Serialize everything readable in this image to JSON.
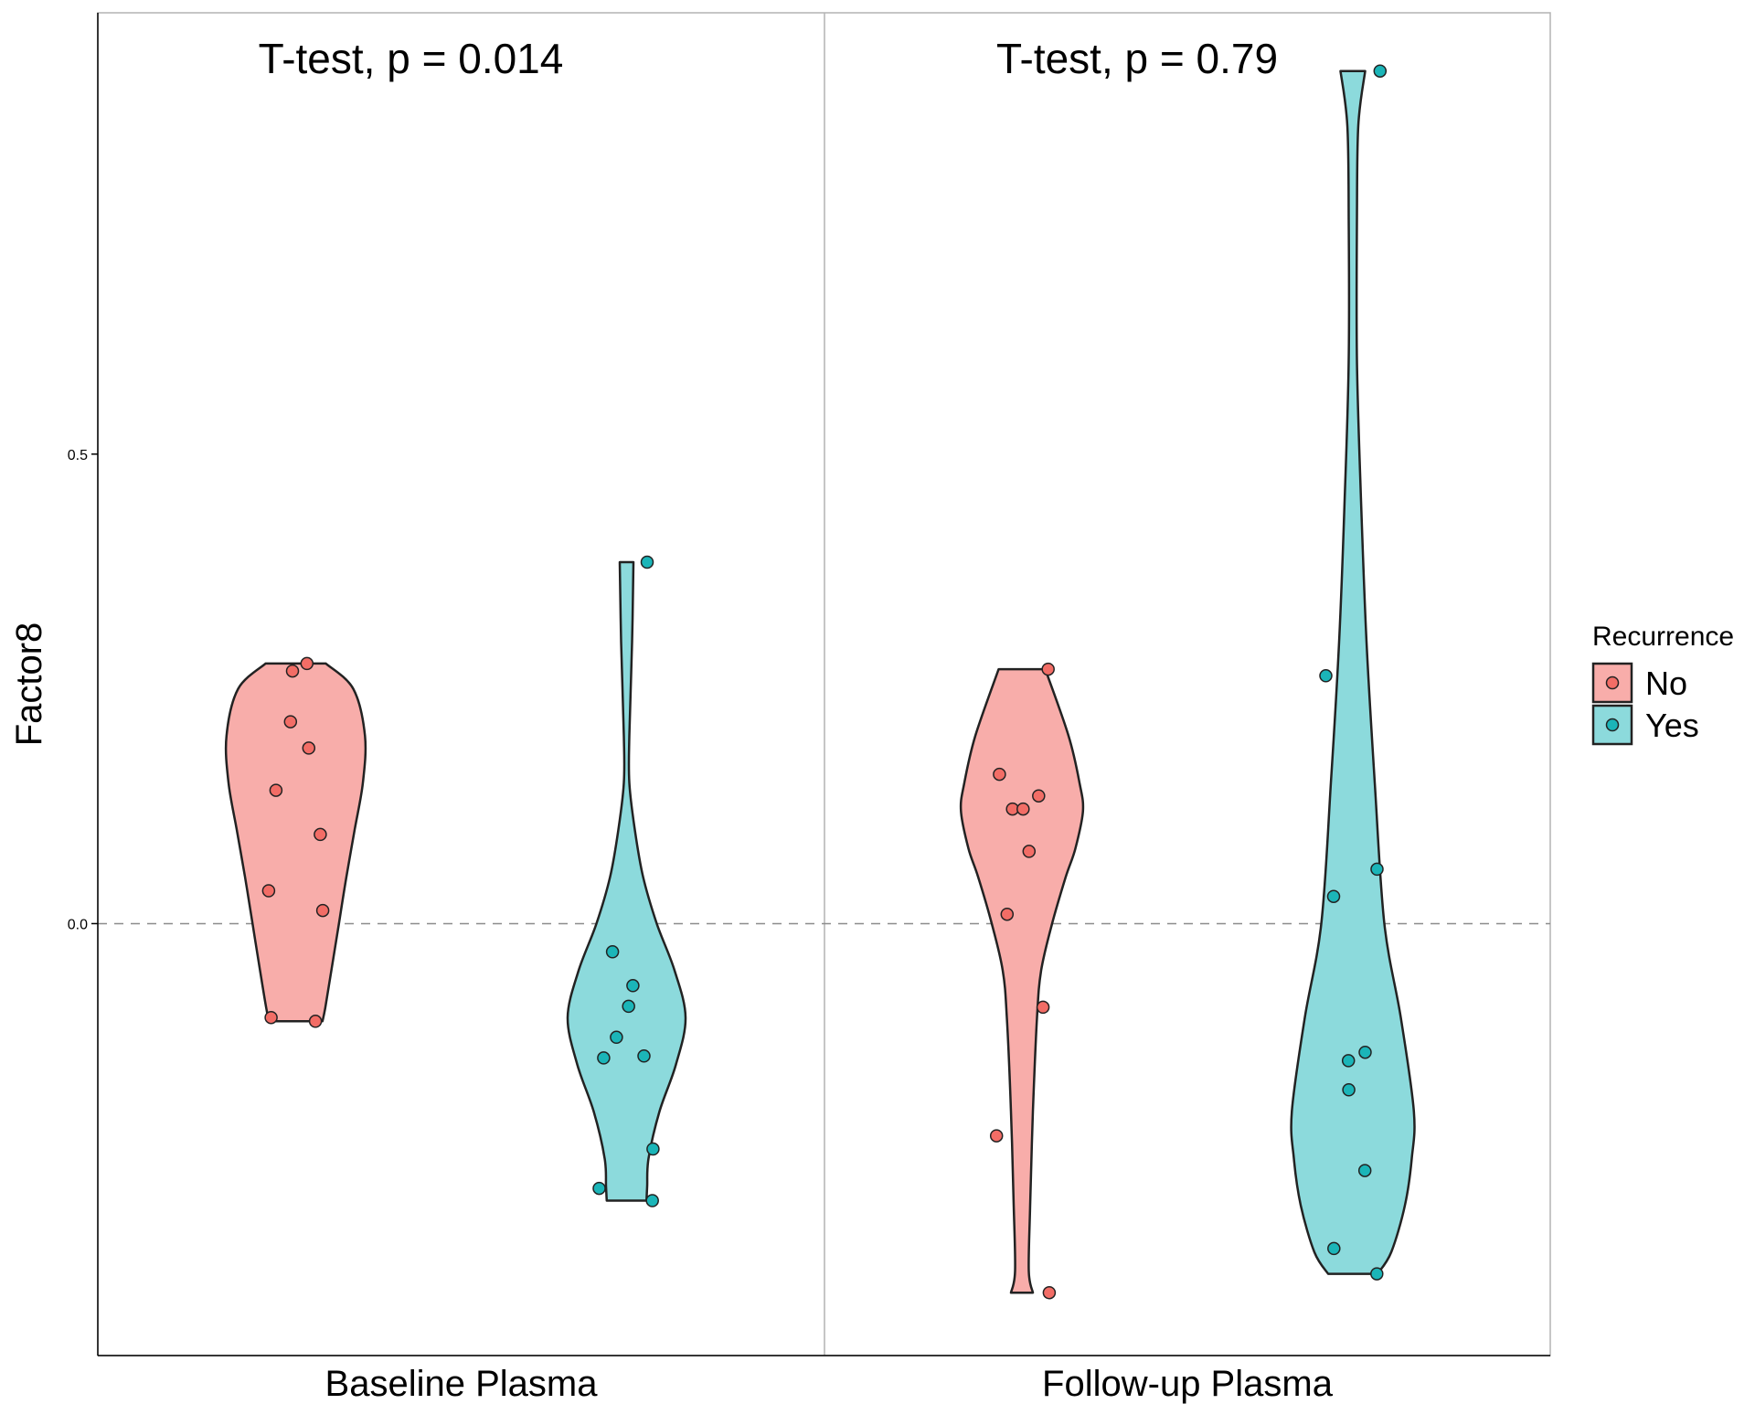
{
  "chart_data": {
    "type": "violin",
    "ylabel": "Factor8",
    "ylim": [
      -0.46,
      0.97
    ],
    "yticks": [
      0.0,
      0.5
    ],
    "ytick_labels": [
      "0.0",
      "0.5"
    ],
    "reference_line": {
      "y": 0.0,
      "style": "dashed"
    },
    "grid": false,
    "legend": {
      "title": "Recurrence",
      "position": "right",
      "entries": [
        {
          "label": "No",
          "fill": "#F8ADAA",
          "point": "#F26D66"
        },
        {
          "label": "Yes",
          "fill": "#8CDADC",
          "point": "#1BB5B8"
        }
      ]
    },
    "categories": [
      "Baseline Plasma",
      "Follow-up Plasma"
    ],
    "annotations": [
      "T-test, p = 0.014",
      "T-test, p = 0.79"
    ],
    "series": [
      {
        "name": "No",
        "panel": "Baseline Plasma",
        "points": [
          0.277,
          0.269,
          0.215,
          0.187,
          0.142,
          0.095,
          0.035,
          0.014,
          -0.1,
          -0.104
        ],
        "violin": [
          [
            0.277,
            0.22
          ],
          [
            0.25,
            0.42
          ],
          [
            0.2,
            0.505
          ],
          [
            0.15,
            0.49
          ],
          [
            0.1,
            0.43
          ],
          [
            0.05,
            0.37
          ],
          [
            0.0,
            0.315
          ],
          [
            -0.05,
            0.26
          ],
          [
            -0.09,
            0.215
          ],
          [
            -0.104,
            0.195
          ]
        ]
      },
      {
        "name": "Yes",
        "panel": "Baseline Plasma",
        "points": [
          0.385,
          -0.03,
          -0.066,
          -0.088,
          -0.121,
          -0.141,
          -0.143,
          -0.24,
          -0.282,
          -0.295
        ],
        "violin": [
          [
            0.385,
            0.05
          ],
          [
            0.3,
            0.04
          ],
          [
            0.2,
            0.02
          ],
          [
            0.15,
            0.02
          ],
          [
            0.1,
            0.06
          ],
          [
            0.05,
            0.12
          ],
          [
            0.0,
            0.22
          ],
          [
            -0.05,
            0.35
          ],
          [
            -0.1,
            0.43
          ],
          [
            -0.15,
            0.36
          ],
          [
            -0.2,
            0.24
          ],
          [
            -0.25,
            0.16
          ],
          [
            -0.28,
            0.15
          ],
          [
            -0.295,
            0.145
          ]
        ]
      },
      {
        "name": "No",
        "panel": "Follow-up Plasma",
        "points": [
          0.271,
          0.159,
          0.136,
          0.122,
          0.122,
          0.077,
          0.01,
          -0.089,
          -0.226,
          -0.393
        ],
        "violin": [
          [
            0.271,
            0.17
          ],
          [
            0.2,
            0.34
          ],
          [
            0.15,
            0.42
          ],
          [
            0.12,
            0.445
          ],
          [
            0.08,
            0.39
          ],
          [
            0.05,
            0.32
          ],
          [
            0.0,
            0.22
          ],
          [
            -0.05,
            0.14
          ],
          [
            -0.1,
            0.11
          ],
          [
            -0.2,
            0.08
          ],
          [
            -0.3,
            0.06
          ],
          [
            -0.37,
            0.05
          ],
          [
            -0.393,
            0.08
          ]
        ]
      },
      {
        "name": "Yes",
        "panel": "Follow-up Plasma",
        "points": [
          0.908,
          0.264,
          0.058,
          0.029,
          -0.137,
          -0.146,
          -0.177,
          -0.263,
          -0.346,
          -0.373
        ],
        "violin": [
          [
            0.908,
            0.09
          ],
          [
            0.85,
            0.04
          ],
          [
            0.75,
            0.03
          ],
          [
            0.6,
            0.03
          ],
          [
            0.45,
            0.06
          ],
          [
            0.3,
            0.1
          ],
          [
            0.15,
            0.16
          ],
          [
            0.0,
            0.23
          ],
          [
            -0.1,
            0.35
          ],
          [
            -0.2,
            0.445
          ],
          [
            -0.25,
            0.43
          ],
          [
            -0.3,
            0.38
          ],
          [
            -0.35,
            0.28
          ],
          [
            -0.373,
            0.18
          ]
        ]
      }
    ]
  }
}
